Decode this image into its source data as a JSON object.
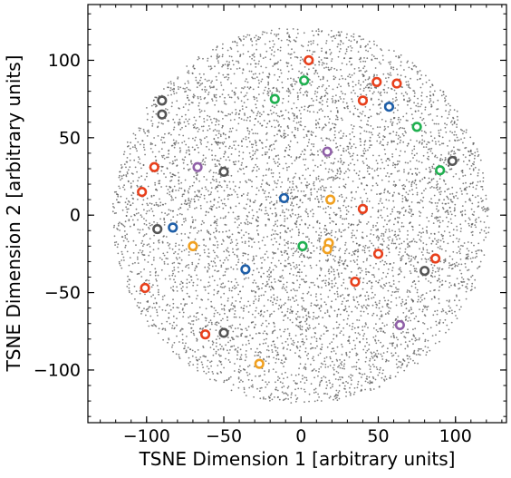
{
  "chart_data": {
    "type": "scatter",
    "xlabel": "TSNE Dimension 1 [arbitrary units]",
    "ylabel": "TSNE Dimension 2 [arbitrary units]",
    "xlim": [
      -138,
      133
    ],
    "ylim": [
      -134,
      136
    ],
    "xticks": [
      -100,
      -50,
      0,
      50,
      100
    ],
    "yticks": [
      -100,
      -50,
      0,
      50,
      100
    ],
    "xtick_labels": [
      "−100",
      "−50",
      "0",
      "50",
      "100"
    ],
    "ytick_labels": [
      "−100",
      "−50",
      "0",
      "50",
      "100"
    ],
    "minor_tick_step": 10,
    "grid": false,
    "background_points": {
      "color": "#555555",
      "shape": "disk",
      "center": [
        0,
        0
      ],
      "radius": 122,
      "approx_count": 6000,
      "description": "dense gray cloud of embedded samples"
    },
    "series": [
      {
        "color": "#e8401c",
        "points": [
          [
            5,
            100
          ],
          [
            49,
            86
          ],
          [
            62,
            85
          ],
          [
            40,
            74
          ],
          [
            -95,
            31
          ],
          [
            -103,
            15
          ],
          [
            40,
            4
          ],
          [
            50,
            -25
          ],
          [
            87,
            -28
          ],
          [
            35,
            -43
          ],
          [
            -101,
            -47
          ],
          [
            -62,
            -77
          ]
        ]
      },
      {
        "color": "#1f5fa8",
        "points": [
          [
            57,
            70
          ],
          [
            -11,
            11
          ],
          [
            -83,
            -8
          ],
          [
            -36,
            -35
          ]
        ]
      },
      {
        "color": "#20b050",
        "points": [
          [
            2,
            87
          ],
          [
            -17,
            75
          ],
          [
            75,
            57
          ],
          [
            90,
            29
          ],
          [
            1,
            -20
          ]
        ]
      },
      {
        "color": "#555555",
        "points": [
          [
            -90,
            74
          ],
          [
            -90,
            65
          ],
          [
            -50,
            28
          ],
          [
            98,
            35
          ],
          [
            -93,
            -9
          ],
          [
            80,
            -36
          ],
          [
            -50,
            -76
          ]
        ]
      },
      {
        "color": "#9060a8",
        "points": [
          [
            -67,
            31
          ],
          [
            17,
            41
          ],
          [
            64,
            -71
          ]
        ]
      },
      {
        "color": "#f0a020",
        "points": [
          [
            19,
            10
          ],
          [
            -70,
            -20
          ],
          [
            18,
            -18
          ],
          [
            17,
            -22
          ],
          [
            -27,
            -96
          ]
        ]
      }
    ]
  }
}
